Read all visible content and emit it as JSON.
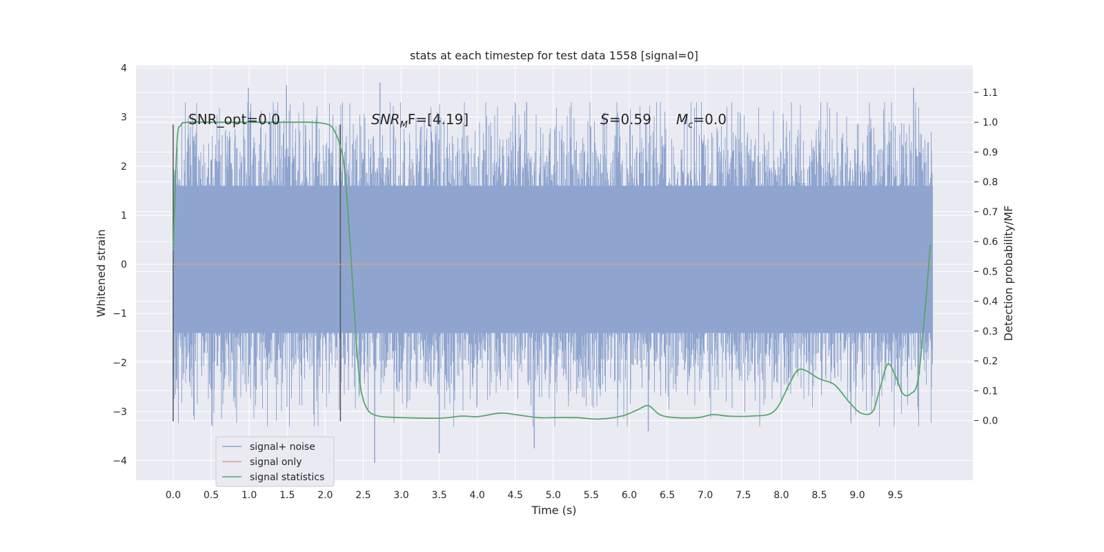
{
  "chart_data": {
    "type": "line",
    "title": "stats at each timestep for test data 1558 [signal=0]",
    "xlabel": "Time (s)",
    "ylabel": "Whitened strain",
    "ylabel_right": "Detection probability/MF",
    "xlim": [
      -0.49,
      10.52
    ],
    "ylim": [
      -4.4,
      4.05
    ],
    "ylim_right": [
      -0.2,
      1.19
    ],
    "x_ticks": [
      "0.0",
      "0.5",
      "1.0",
      "1.5",
      "2.0",
      "2.5",
      "3.0",
      "3.5",
      "4.0",
      "4.5",
      "5.0",
      "5.5",
      "6.0",
      "6.5",
      "7.0",
      "7.5",
      "8.0",
      "8.5",
      "9.0",
      "9.5"
    ],
    "y_ticks": [
      "−4",
      "−3",
      "−2",
      "−1",
      "0",
      "1",
      "2",
      "3",
      "4"
    ],
    "y_ticks_right": [
      "0.0",
      "0.1",
      "0.2",
      "0.3",
      "0.4",
      "0.5",
      "0.6",
      "0.7",
      "0.8",
      "0.9",
      "1.0",
      "1.1"
    ],
    "grid": true,
    "legend_position": "lower-left",
    "colors": {
      "noise": "#8fa5cf",
      "signal": "#e59b82",
      "stats": "#55a868",
      "background": "#eaeaf2",
      "vline": "#555555"
    },
    "annotations": {
      "snr_opt": "SNR_opt=0.0",
      "snr_mf_main": "SNR",
      "snr_mf_sub": "M",
      "snr_mf_rest": "F=[4.19]",
      "s_sym": "S",
      "s_val": "=0.59",
      "mc_sym": "M",
      "mc_sub": "c",
      "mc_val": "=0.0"
    },
    "vertical_lines_x": [
      0.0,
      2.2
    ],
    "series": [
      {
        "name": "signal+ noise",
        "kind": "noise-band",
        "x_range": [
          0.0,
          9.99
        ],
        "envelope_upper": 1.6,
        "envelope_lower": -1.4,
        "peaks": [
          [
            0.99,
            3.6
          ],
          [
            1.49,
            3.65
          ],
          [
            2.72,
            3.7
          ],
          [
            9.74,
            3.6
          ],
          [
            3.5,
            -3.85
          ],
          [
            2.65,
            -4.05
          ],
          [
            4.75,
            -3.75
          ],
          [
            6.25,
            -3.4
          ]
        ]
      },
      {
        "name": "signal only",
        "kind": "line",
        "axis": "left",
        "x": [
          0.0,
          9.99
        ],
        "y": [
          0.0,
          0.0
        ]
      },
      {
        "name": "signal statistics",
        "kind": "line",
        "axis": "right",
        "x": [
          0.0,
          0.05,
          0.1,
          0.2,
          0.5,
          1.0,
          1.5,
          1.8,
          2.0,
          2.1,
          2.2,
          2.25,
          2.3,
          2.35,
          2.4,
          2.45,
          2.5,
          2.55,
          2.6,
          2.7,
          2.8,
          3.0,
          3.5,
          3.8,
          4.0,
          4.3,
          4.5,
          4.8,
          5.0,
          5.3,
          5.6,
          5.9,
          6.1,
          6.25,
          6.4,
          6.6,
          6.9,
          7.1,
          7.3,
          7.6,
          7.9,
          8.1,
          8.2,
          8.3,
          8.5,
          8.7,
          8.9,
          9.05,
          9.2,
          9.3,
          9.4,
          9.5,
          9.6,
          9.7,
          9.8,
          9.9,
          9.96
        ],
        "y": [
          0.57,
          0.93,
          0.99,
          1.0,
          1.0,
          1.0,
          1.0,
          1.0,
          0.995,
          0.98,
          0.92,
          0.85,
          0.7,
          0.5,
          0.3,
          0.14,
          0.07,
          0.04,
          0.025,
          0.015,
          0.012,
          0.01,
          0.008,
          0.015,
          0.013,
          0.025,
          0.02,
          0.01,
          0.01,
          0.01,
          0.005,
          0.015,
          0.035,
          0.05,
          0.02,
          0.01,
          0.01,
          0.02,
          0.015,
          0.015,
          0.03,
          0.12,
          0.165,
          0.17,
          0.14,
          0.12,
          0.06,
          0.025,
          0.03,
          0.11,
          0.19,
          0.15,
          0.09,
          0.09,
          0.14,
          0.4,
          0.59
        ]
      }
    ]
  }
}
